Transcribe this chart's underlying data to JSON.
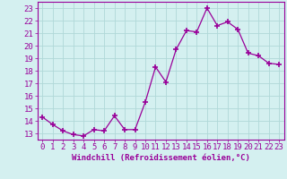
{
  "x": [
    0,
    1,
    2,
    3,
    4,
    5,
    6,
    7,
    8,
    9,
    10,
    11,
    12,
    13,
    14,
    15,
    16,
    17,
    18,
    19,
    20,
    21,
    22,
    23
  ],
  "y": [
    14.3,
    13.7,
    13.2,
    12.9,
    12.8,
    13.3,
    13.2,
    14.4,
    13.3,
    13.3,
    15.5,
    18.3,
    17.1,
    19.7,
    21.2,
    21.1,
    23.0,
    21.6,
    21.9,
    21.3,
    19.4,
    19.2,
    18.6,
    18.5
  ],
  "line_color": "#990099",
  "marker": "+",
  "markersize": 4,
  "markeredgewidth": 1.2,
  "linewidth": 0.9,
  "bg_color": "#d4f0f0",
  "grid_color": "#b0d8d8",
  "tick_color": "#990099",
  "label_color": "#990099",
  "xlabel": "Windchill (Refroidissement éolien,°C)",
  "ylim": [
    12.5,
    23.5
  ],
  "xlim": [
    -0.5,
    23.5
  ],
  "yticks": [
    13,
    14,
    15,
    16,
    17,
    18,
    19,
    20,
    21,
    22,
    23
  ],
  "xticks": [
    0,
    1,
    2,
    3,
    4,
    5,
    6,
    7,
    8,
    9,
    10,
    11,
    12,
    13,
    14,
    15,
    16,
    17,
    18,
    19,
    20,
    21,
    22,
    23
  ],
  "xtick_labels": [
    "0",
    "1",
    "2",
    "3",
    "4",
    "5",
    "6",
    "7",
    "8",
    "9",
    "10",
    "11",
    "12",
    "13",
    "14",
    "15",
    "16",
    "17",
    "18",
    "19",
    "20",
    "21",
    "22",
    "23"
  ],
  "ytick_labels": [
    "13",
    "14",
    "15",
    "16",
    "17",
    "18",
    "19",
    "20",
    "21",
    "22",
    "23"
  ],
  "tick_fontsize": 6.5,
  "xlabel_fontsize": 6.5
}
